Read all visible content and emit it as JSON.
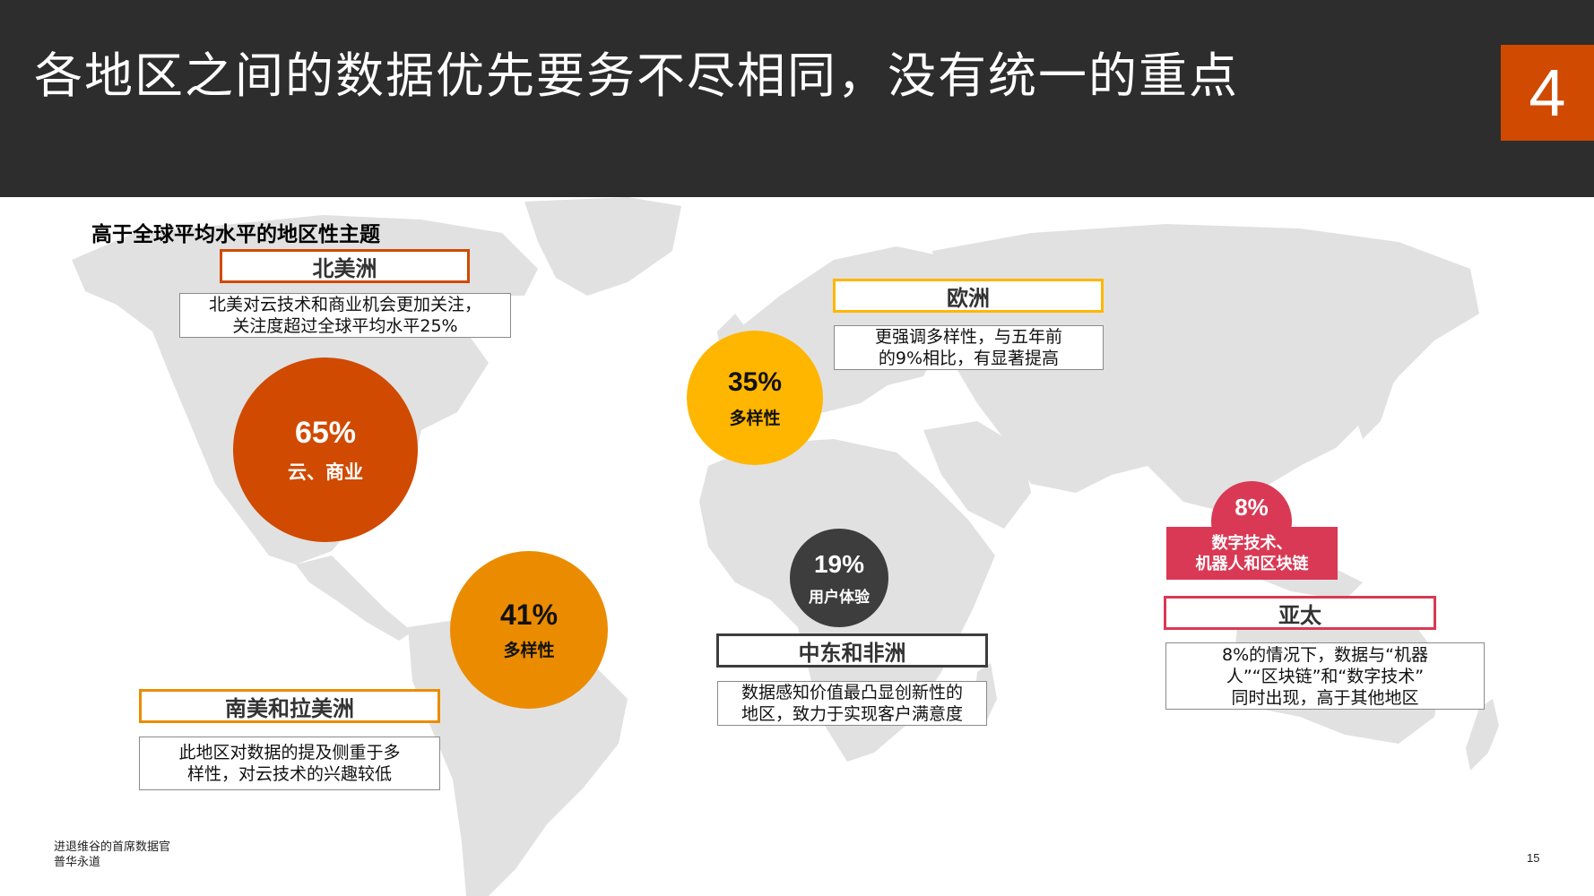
{
  "header": {
    "title": "各地区之间的数据优先要务不尽相同，没有统一的重点",
    "section_number": "4"
  },
  "subtitle": "高于全球平均水平的地区性主题",
  "regions": {
    "north_america": {
      "label": "北美洲",
      "description": "北美对云技术和商业机会更加关注，\n关注度超过全球平均水平25%",
      "percent": "65%",
      "topic": "云、商业",
      "color": "#d04a02"
    },
    "europe": {
      "label": "欧洲",
      "description": "更强调多样性，与五年前\n的9%相比，有显著提高",
      "percent": "35%",
      "topic": "多样性",
      "color": "#ffb600"
    },
    "latin_america": {
      "label": "南美和拉美洲",
      "description": "此地区对数据的提及侧重于多\n样性，对云技术的兴趣较低",
      "percent": "41%",
      "topic": "多样性",
      "color": "#eb8c00"
    },
    "middle_east_africa": {
      "label": "中东和非洲",
      "description": "数据感知价值最凸显创新性的\n地区，致力于实现客户满意度",
      "percent": "19%",
      "topic": "用户体验",
      "color": "#3d3d3d"
    },
    "asia_pacific": {
      "label": "亚太",
      "description": "8%的情况下，数据与“机器\n人”“区块链”和“数字技术”\n同时出现，高于其他地区",
      "percent": "8%",
      "topic": "数字技术、\n机器人和区块链",
      "color": "#d93954"
    }
  },
  "footer": {
    "line1": "进退维谷的首席数据官",
    "line2": "普华永道",
    "page": "15"
  }
}
